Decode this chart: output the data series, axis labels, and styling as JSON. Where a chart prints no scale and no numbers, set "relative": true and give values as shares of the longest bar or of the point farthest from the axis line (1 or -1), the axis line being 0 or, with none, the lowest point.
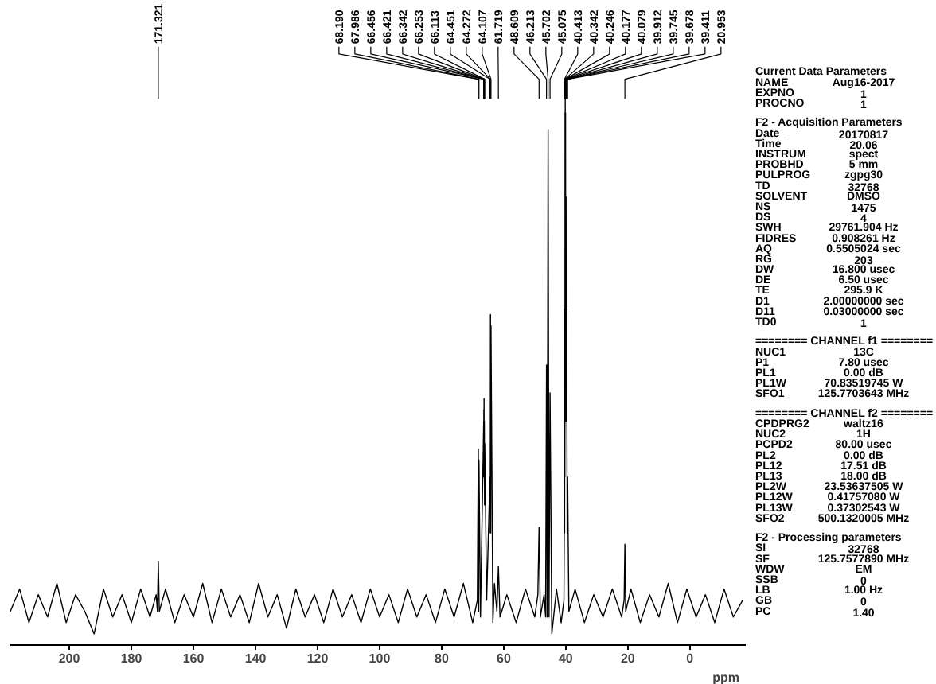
{
  "chart_data": {
    "type": "line",
    "relative": true,
    "xlabel": "ppm",
    "xlim": [
      219,
      -18
    ],
    "xticks": [
      200,
      180,
      160,
      140,
      120,
      100,
      80,
      60,
      40,
      20,
      0
    ],
    "grid": false,
    "x": [
      219,
      216,
      213,
      210,
      207,
      204,
      201,
      198,
      195,
      192,
      189,
      186,
      183,
      180,
      177,
      174,
      172,
      171.6,
      171.321,
      171.0,
      169,
      166,
      163,
      160,
      157,
      154,
      151,
      148,
      145,
      142,
      139,
      136,
      133,
      130,
      127,
      124,
      121,
      118,
      115,
      112,
      109,
      106,
      103,
      100,
      97,
      94,
      91,
      88,
      85,
      82,
      79,
      76,
      73,
      70,
      68.5,
      68.19,
      68.09,
      67.986,
      67.5,
      66.456,
      66.44,
      66.421,
      66.38,
      66.342,
      66.3,
      66.253,
      66.18,
      66.113,
      65.5,
      64.451,
      64.36,
      64.272,
      64.19,
      64.107,
      63.5,
      63,
      62.2,
      61.719,
      61.2,
      59,
      56,
      53,
      50,
      49,
      48.609,
      48.2,
      47,
      46.5,
      46.213,
      46.0,
      45.702,
      45.4,
      45.075,
      44.5,
      43,
      41.5,
      40.6,
      40.413,
      40.38,
      40.342,
      40.29,
      40.246,
      40.21,
      40.177,
      40.13,
      40.079,
      40.0,
      39.912,
      39.83,
      39.745,
      39.71,
      39.678,
      39.55,
      39.411,
      39.0,
      37,
      34,
      31,
      28,
      25,
      22,
      21.2,
      20.953,
      20.7,
      19,
      16,
      13,
      10,
      7,
      4,
      1,
      -2,
      -5,
      -8,
      -11,
      -14,
      -17
    ],
    "series": [
      {
        "color": "#000000",
        "values": [
          0.06,
          0.1,
          0.04,
          0.09,
          0.05,
          0.11,
          0.04,
          0.09,
          0.06,
          0.02,
          0.1,
          0.05,
          0.09,
          0.04,
          0.1,
          0.05,
          0.09,
          0.06,
          0.15,
          0.06,
          0.1,
          0.04,
          0.09,
          0.05,
          0.11,
          0.04,
          0.1,
          0.05,
          0.09,
          0.04,
          0.11,
          0.05,
          0.09,
          0.03,
          0.1,
          0.05,
          0.09,
          0.04,
          0.1,
          0.05,
          0.09,
          0.04,
          0.1,
          0.05,
          0.09,
          0.04,
          0.1,
          0.05,
          0.09,
          0.04,
          0.1,
          0.05,
          0.11,
          0.04,
          0.08,
          0.35,
          0.06,
          0.33,
          0.05,
          0.4,
          0.3,
          0.42,
          0.3,
          0.44,
          0.3,
          0.4,
          0.25,
          0.36,
          0.08,
          0.3,
          0.2,
          0.59,
          0.2,
          0.57,
          0.04,
          0.11,
          0.06,
          0.14,
          0.05,
          0.09,
          0.04,
          0.1,
          0.05,
          0.09,
          0.21,
          0.05,
          0.09,
          0.05,
          0.5,
          0.05,
          0.92,
          0.05,
          0.45,
          0.02,
          0.1,
          0.04,
          0.08,
          0.3,
          0.2,
          0.6,
          0.3,
          0.95,
          0.5,
          1.0,
          0.5,
          0.95,
          0.4,
          0.8,
          0.4,
          0.6,
          0.4,
          0.5,
          0.2,
          0.3,
          0.06,
          0.1,
          0.04,
          0.09,
          0.05,
          0.1,
          0.05,
          0.08,
          0.18,
          0.06,
          0.1,
          0.04,
          0.09,
          0.05,
          0.11,
          0.04,
          0.1,
          0.05,
          0.09,
          0.04,
          0.1,
          0.05,
          0.08
        ]
      }
    ],
    "annotations": [
      {
        "text": "171.321",
        "x": 171.321
      },
      {
        "text": "68.190",
        "x": 68.19
      },
      {
        "text": "67.986",
        "x": 67.986
      },
      {
        "text": "66.456",
        "x": 66.456
      },
      {
        "text": "66.421",
        "x": 66.421
      },
      {
        "text": "66.342",
        "x": 66.342
      },
      {
        "text": "66.253",
        "x": 66.253
      },
      {
        "text": "66.113",
        "x": 66.113
      },
      {
        "text": "64.451",
        "x": 64.451
      },
      {
        "text": "64.272",
        "x": 64.272
      },
      {
        "text": "64.107",
        "x": 64.107
      },
      {
        "text": "61.719",
        "x": 61.719
      },
      {
        "text": "48.609",
        "x": 48.609
      },
      {
        "text": "46.213",
        "x": 46.213
      },
      {
        "text": "45.702",
        "x": 45.702
      },
      {
        "text": "45.075",
        "x": 45.075
      },
      {
        "text": "40.413",
        "x": 40.413
      },
      {
        "text": "40.342",
        "x": 40.342
      },
      {
        "text": "40.246",
        "x": 40.246
      },
      {
        "text": "40.177",
        "x": 40.177
      },
      {
        "text": "40.079",
        "x": 40.079
      },
      {
        "text": "39.912",
        "x": 39.912
      },
      {
        "text": "39.745",
        "x": 39.745
      },
      {
        "text": "39.678",
        "x": 39.678
      },
      {
        "text": "39.411",
        "x": 39.411
      },
      {
        "text": "20.953",
        "x": 20.953
      },
      "Current Data Parameters",
      "NAME\tAug16-2017",
      "EXPNO\t1",
      "PROCNO\t1",
      "F2 - Acquisition Parameters",
      "Date_\t20170817",
      "Time\t20.06",
      "INSTRUM\tspect",
      "PROBHD\t5 mm",
      "PULPROG\tzgpg30",
      "TD\t32768",
      "SOLVENT\tDMSO",
      "NS\t1475",
      "DS\t4",
      "SWH\t29761.904 Hz",
      "FIDRES\t0.908261 Hz",
      "AQ\t0.5505024 sec",
      "RG\t203",
      "DW\t16.800 usec",
      "DE\t6.50 usec",
      "TE\t295.9 K",
      "D1\t2.00000000 sec",
      "D11\t0.03000000 sec",
      "TD0\t1",
      "======== CHANNEL f1 ========",
      "NUC1\t13C",
      "P1\t7.80 usec",
      "PL1\t0.00 dB",
      "PL1W\t70.83519745 W",
      "SFO1\t125.7703643 MHz",
      "======== CHANNEL f2 ========",
      "CPDPRG2\twaltz16",
      "NUC2\t1H",
      "PCPD2\t80.00 usec",
      "PL2\t0.00 dB",
      "PL12\t17.51 dB",
      "PL13\t18.00 dB",
      "PL2W\t23.53637505 W",
      "PL12W\t0.41757080 W",
      "PL13W\t0.37302543 W",
      "SFO2\t500.1320005 MHz",
      "F2 - Processing parameters",
      "SI\t32768",
      "SF\t125.7577890 MHz",
      "WDW\tEM",
      "SSB\t0",
      "LB\t1.00 Hz",
      "GB\t0",
      "PC\t1.40"
    ]
  }
}
